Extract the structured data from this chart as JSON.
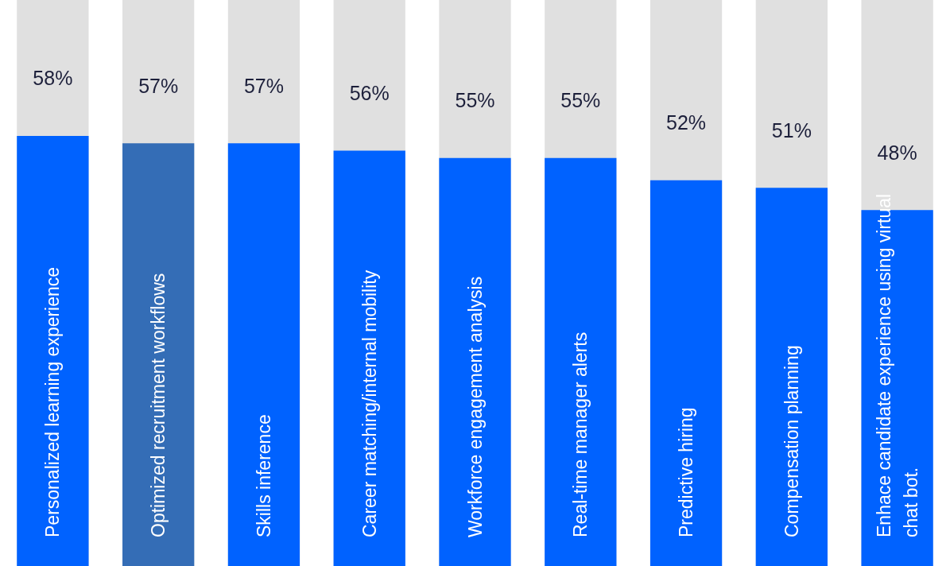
{
  "chart_data": {
    "type": "bar",
    "categories": [
      "Personalized learning experience",
      "Optimized recruitment workflows",
      "Skills inference",
      "Career matching/internal mobility",
      "Workforce engagement analysis",
      "Real-time manager alerts",
      "Predictive hiring",
      "Compensation planning",
      "Enhace candidate experience using virtual chat bot."
    ],
    "values": [
      58,
      57,
      57,
      56,
      55,
      55,
      52,
      51,
      48
    ],
    "colors": [
      "#0062ff",
      "#346db6",
      "#0062ff",
      "#0062ff",
      "#0062ff",
      "#0062ff",
      "#0062ff",
      "#0062ff",
      "#0062ff"
    ],
    "value_labels": [
      "58%",
      "57%",
      "57%",
      "56%",
      "55%",
      "55%",
      "52%",
      "51%",
      "48%"
    ]
  }
}
